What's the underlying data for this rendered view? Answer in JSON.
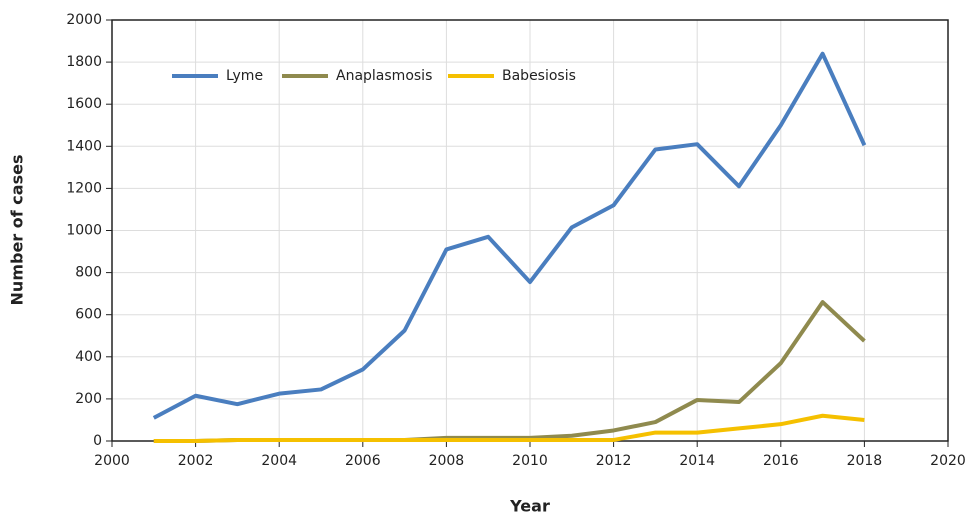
{
  "chart_data": {
    "type": "line",
    "x_label": "Year",
    "y_label": "Number of cases",
    "x": [
      2001,
      2002,
      2003,
      2004,
      2005,
      2006,
      2007,
      2008,
      2009,
      2010,
      2011,
      2012,
      2013,
      2014,
      2015,
      2016,
      2017,
      2018
    ],
    "series": [
      {
        "name": "Lyme",
        "color": "#4a7ebf",
        "values": [
          110,
          215,
          175,
          225,
          245,
          340,
          525,
          910,
          970,
          755,
          1015,
          1120,
          1385,
          1410,
          1210,
          1500,
          1840,
          1405
        ]
      },
      {
        "name": "Anaplasmosis",
        "color": "#8f8a4e",
        "values": [
          0,
          0,
          5,
          5,
          5,
          5,
          5,
          15,
          15,
          15,
          25,
          50,
          90,
          195,
          185,
          370,
          660,
          475
        ]
      },
      {
        "name": "Babesiosis",
        "color": "#f5c000",
        "values": [
          0,
          0,
          5,
          5,
          5,
          5,
          5,
          5,
          5,
          5,
          5,
          5,
          40,
          40,
          60,
          80,
          120,
          100
        ]
      }
    ],
    "xlim": [
      2000,
      2020
    ],
    "xticks": [
      2000,
      2002,
      2004,
      2006,
      2008,
      2010,
      2012,
      2014,
      2016,
      2018,
      2020
    ],
    "ylim": [
      0,
      2000
    ],
    "yticks": [
      0,
      200,
      400,
      600,
      800,
      1000,
      1200,
      1400,
      1600,
      1800,
      2000
    ],
    "grid": true,
    "legend": "top-left"
  }
}
